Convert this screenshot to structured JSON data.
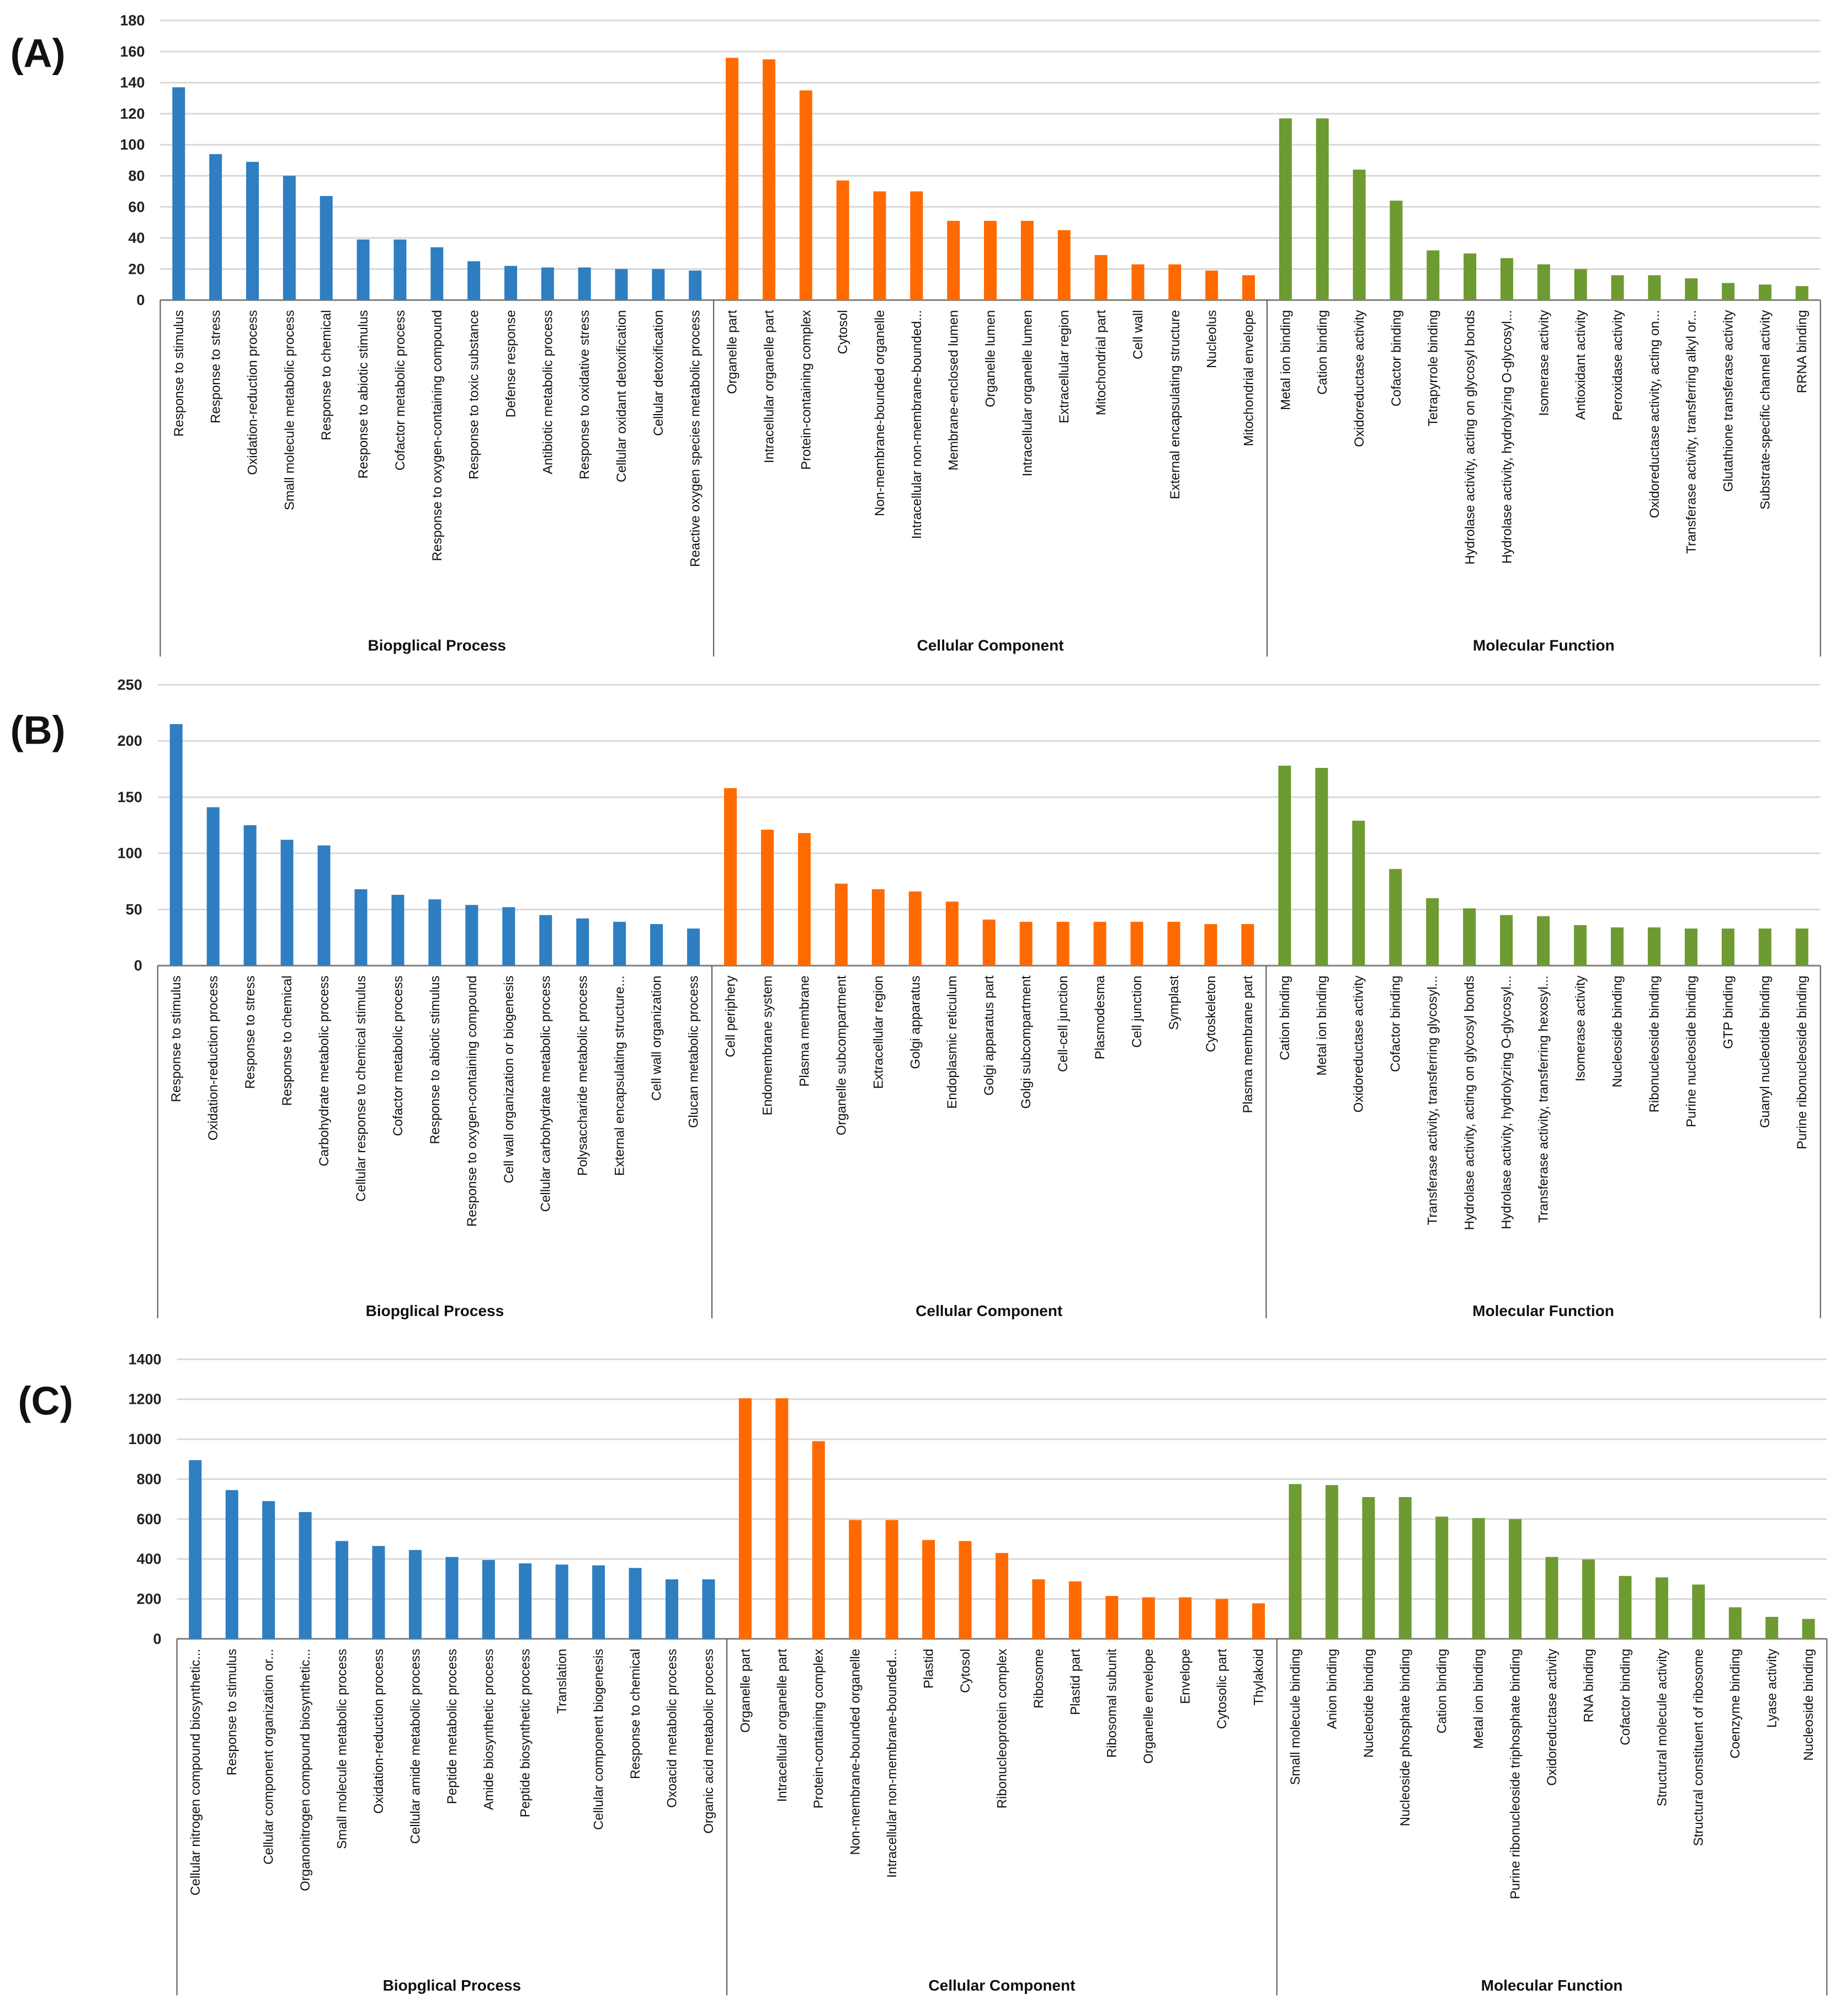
{
  "colors": {
    "bp": "#2E7EC1",
    "cc": "#FF6A00",
    "mf": "#6E9A32",
    "grid": "#D9D9D9",
    "axis": "#808080"
  },
  "chart_data": [
    {
      "type": "bar",
      "panel_label": "(A)",
      "ylim": [
        0,
        180
      ],
      "yticks": [
        0,
        20,
        40,
        60,
        80,
        100,
        120,
        140,
        160,
        180
      ],
      "grid": true,
      "groups": [
        {
          "name": "Biopglical Process",
          "color_key": "bp",
          "categories": [
            "Response to stimulus",
            "Response to stress",
            "Oxidation-reduction process",
            "Small molecule metabolic process",
            "Response to chemical",
            "Response to abiotic stimulus",
            "Cofactor metabolic process",
            "Response to oxygen-containing compound",
            "Response to toxic substance",
            "Defense response",
            "Antibiotic metabolic process",
            "Response to oxidative stress",
            "Cellular oxidant detoxification",
            "Cellular detoxification",
            "Reactive oxygen species metabolic process"
          ],
          "values": [
            137,
            94,
            89,
            80,
            67,
            39,
            39,
            34,
            25,
            22,
            21,
            21,
            20,
            20,
            19
          ]
        },
        {
          "name": "Cellular Component",
          "color_key": "cc",
          "categories": [
            "Organelle part",
            "Intracellular organelle part",
            "Protein-containing complex",
            "Cytosol",
            "Non-membrane-bounded organelle",
            "Intracellular non-membrane-bounded...",
            "Membrane-enclosed lumen",
            "Organelle lumen",
            "Intracellular organelle lumen",
            "Extracellular region",
            "Mitochondrial part",
            "Cell wall",
            "External encapsulating structure",
            "Nucleolus",
            "Mitochondrial envelope"
          ],
          "values": [
            156,
            155,
            135,
            77,
            70,
            70,
            51,
            51,
            51,
            45,
            29,
            23,
            23,
            19,
            16
          ]
        },
        {
          "name": "Molecular Function",
          "color_key": "mf",
          "categories": [
            "Metal ion binding",
            "Cation binding",
            "Oxidoreductase activity",
            "Cofactor binding",
            "Tetrapyrrole binding",
            "Hydrolase activity, acting on glycosyl bonds",
            "Hydrolase activity, hydrolyzing O-glycosyl...",
            "Isomerase activity",
            "Antioxidant activity",
            "Peroxidase activity",
            "Oxidoreductase activity, acting on...",
            "Transferase activity, transferring alkyl or...",
            "Glutathione transferase activity",
            "Substrate-specific channel activity",
            "RRNA binding"
          ],
          "values": [
            117,
            117,
            84,
            64,
            32,
            30,
            27,
            23,
            20,
            16,
            16,
            14,
            11,
            10,
            9
          ]
        }
      ]
    },
    {
      "type": "bar",
      "panel_label": "(B)",
      "ylim": [
        0,
        250
      ],
      "yticks": [
        0,
        50,
        100,
        150,
        200,
        250
      ],
      "grid": true,
      "groups": [
        {
          "name": "Biopglical Process",
          "color_key": "bp",
          "categories": [
            "Response to stimulus",
            "Oxidation-reduction process",
            "Response to stress",
            "Response to chemical",
            "Carbohydrate metabolic process",
            "Cellular response to chemical stimulus",
            "Cofactor metabolic process",
            "Response to abiotic stimulus",
            "Response to oxygen-containing compound",
            "Cell wall organization or biogenesis",
            "Cellular carbohydrate metabolic process",
            "Polysaccharide metabolic process",
            "External encapsulating structure...",
            "Cell wall organization",
            "Glucan metabolic process"
          ],
          "values": [
            215,
            141,
            125,
            112,
            107,
            68,
            63,
            59,
            54,
            52,
            45,
            42,
            39,
            37,
            33
          ]
        },
        {
          "name": "Cellular Component",
          "color_key": "cc",
          "categories": [
            "Cell periphery",
            "Endomembrane system",
            "Plasma membrane",
            "Organelle subcompartment",
            "Extracellular region",
            "Golgi apparatus",
            "Endoplasmic reticulum",
            "Golgi apparatus part",
            "Golgi subcompartment",
            "Cell-cell junction",
            "Plasmodesma",
            "Cell junction",
            "Symplast",
            "Cytoskeleton",
            "Plasma membrane part"
          ],
          "values": [
            158,
            121,
            118,
            73,
            68,
            66,
            57,
            41,
            39,
            39,
            39,
            39,
            39,
            37,
            37
          ]
        },
        {
          "name": "Molecular Function",
          "color_key": "mf",
          "categories": [
            "Cation binding",
            "Metal ion binding",
            "Oxidoreductase activity",
            "Cofactor binding",
            "Transferase activity, transferring glycosyl...",
            "Hydrolase activity, acting on glycosyl bonds",
            "Hydrolase activity, hydrolyzing O-glycosyl...",
            "Transferase activity, transferring hexosyl...",
            "Isomerase activity",
            "Nucleoside binding",
            "Ribonucleoside binding",
            "Purine nucleoside binding",
            "GTP binding",
            "Guanyl nucleotide binding",
            "Purine ribonucleoside binding"
          ],
          "values": [
            178,
            176,
            129,
            86,
            60,
            51,
            45,
            44,
            36,
            34,
            34,
            33,
            33,
            33,
            33
          ]
        }
      ]
    },
    {
      "type": "bar",
      "panel_label": "(C)",
      "ylim": [
        0,
        1400
      ],
      "yticks": [
        0,
        200,
        400,
        600,
        800,
        1000,
        1200,
        1400
      ],
      "grid": true,
      "groups": [
        {
          "name": "Biopglical Process",
          "color_key": "bp",
          "categories": [
            "Cellular nitrogen compound biosynthetic...",
            "Response to stimulus",
            "Cellular component organization or...",
            "Organonitrogen compound biosynthetic...",
            "Small molecule metabolic process",
            "Oxidation-reduction process",
            "Cellular amide metabolic process",
            "Peptide metabolic process",
            "Amide biosynthetic process",
            "Peptide biosynthetic process",
            "Translation",
            "Cellular component biogenesis",
            "Response to chemical",
            "Oxoacid metabolic process",
            "Organic acid metabolic process"
          ],
          "values": [
            895,
            745,
            690,
            635,
            490,
            465,
            445,
            410,
            395,
            378,
            372,
            368,
            355,
            298,
            298
          ]
        },
        {
          "name": "Cellular Component",
          "color_key": "cc",
          "categories": [
            "Organelle part",
            "Intracellular organelle part",
            "Protein-containing complex",
            "Non-membrane-bounded organelle",
            "Intracellular non-membrane-bounded...",
            "Plastid",
            "Cytosol",
            "Ribonucleoprotein complex",
            "Ribosome",
            "Plastid part",
            "Ribosomal subunit",
            "Organelle envelope",
            "Envelope",
            "Cytosolic part",
            "Thylakoid"
          ],
          "values": [
            1205,
            1205,
            990,
            595,
            595,
            495,
            490,
            430,
            298,
            288,
            215,
            208,
            208,
            200,
            178
          ]
        },
        {
          "name": "Molecular Function",
          "color_key": "mf",
          "categories": [
            "Small molecule binding",
            "Anion binding",
            "Nucleotide binding",
            "Nucleoside phosphate binding",
            "Cation binding",
            "Metal ion binding",
            "Purine ribonucleoside triphosphate binding",
            "Oxidoreductase activity",
            "RNA binding",
            "Cofactor binding",
            "Structural molecule activity",
            "Structural constituent of ribosome",
            "Coenzyme binding",
            "Lyase activity",
            "Nucleoside binding"
          ],
          "values": [
            775,
            770,
            710,
            710,
            612,
            605,
            600,
            410,
            398,
            315,
            308,
            272,
            158,
            110,
            100
          ]
        }
      ]
    }
  ]
}
